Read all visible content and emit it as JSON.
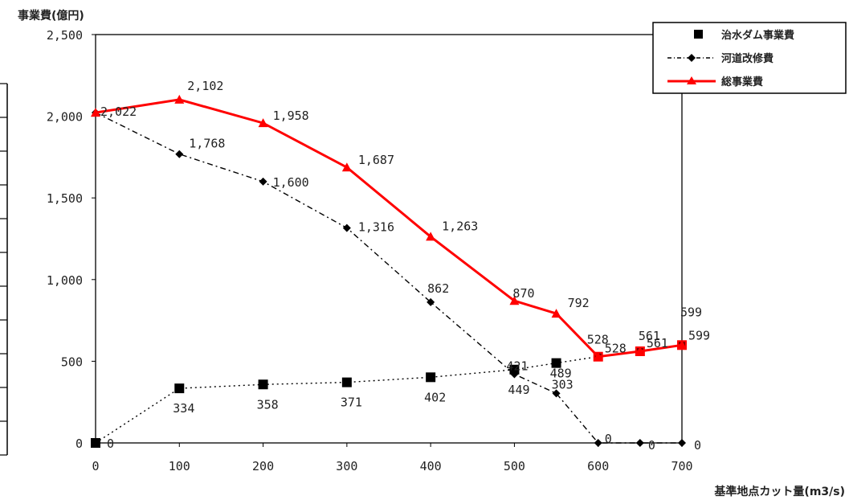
{
  "chart_data": {
    "type": "line",
    "ylabel": "事業費(億円)",
    "xlabel": "基準地点カット量(m3/s)",
    "xlim": [
      0,
      700
    ],
    "ylim": [
      0,
      2500
    ],
    "x_ticks": [
      0,
      100,
      200,
      300,
      400,
      500,
      600,
      700
    ],
    "x_tick_labels": [
      "0",
      "100",
      "200",
      "300",
      "400",
      "500",
      "600",
      "700"
    ],
    "y_ticks": [
      0,
      500,
      1000,
      1500,
      2000,
      2500
    ],
    "y_tick_labels": [
      "0",
      "500",
      "1,000",
      "1,500",
      "2,000",
      "2,500"
    ],
    "grid": false,
    "legend_position": "top-right",
    "series": [
      {
        "name": "治水ダム事業費",
        "color": "#000000",
        "line_style": "dotted",
        "marker": "square",
        "x": [
          0,
          100,
          200,
          300,
          400,
          500,
          550,
          600,
          650,
          700
        ],
        "y": [
          0,
          334,
          358,
          371,
          402,
          449,
          489,
          528,
          561,
          599
        ],
        "labels": [
          "0",
          "334",
          "358",
          "371",
          "402",
          "449",
          "489",
          "528",
          "561",
          "599"
        ]
      },
      {
        "name": "河道改修費",
        "color": "#000000",
        "line_style": "dashdot",
        "marker": "diamond",
        "x": [
          0,
          100,
          200,
          300,
          400,
          500,
          550,
          600,
          650,
          700
        ],
        "y": [
          2022,
          1768,
          1600,
          1316,
          862,
          421,
          303,
          0,
          0,
          0
        ],
        "labels": [
          "2,022",
          "1,768",
          "1,600",
          "1,316",
          "862",
          "421",
          "303",
          "0",
          "0",
          "0"
        ]
      },
      {
        "name": "総事業費",
        "color": "#ff0000",
        "line_style": "solid",
        "marker": "triangle",
        "x": [
          0,
          100,
          200,
          300,
          400,
          500,
          550,
          600,
          650,
          700
        ],
        "y": [
          2022,
          2102,
          1958,
          1687,
          1263,
          870,
          792,
          528,
          561,
          599
        ],
        "labels": [
          "",
          "2,102",
          "1,958",
          "1,687",
          "1,263",
          "870",
          "792",
          "528",
          "561",
          "599"
        ]
      }
    ]
  }
}
